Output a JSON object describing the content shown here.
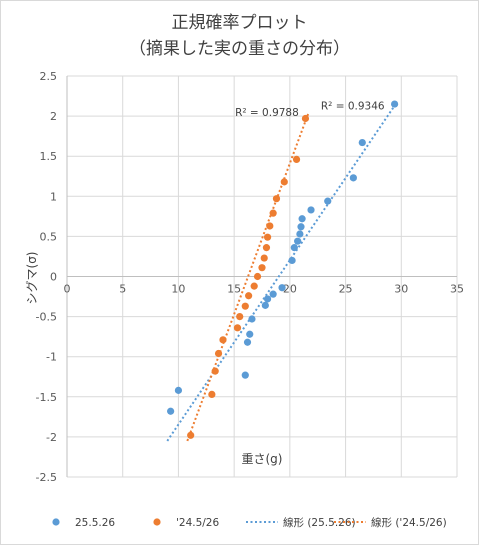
{
  "chart_data": {
    "type": "scatter",
    "title": "正規確率プロット",
    "subtitle": "（摘果した実の重さの分布）",
    "xlabel": "重さ(g)",
    "ylabel": "シグマ(σ)",
    "xlim": [
      0,
      35
    ],
    "ylim": [
      -2.5,
      2.5
    ],
    "x_ticks": [
      "0",
      "5",
      "10",
      "15",
      "20",
      "25",
      "30",
      "35"
    ],
    "y_ticks": [
      "2.5",
      "2",
      "1.5",
      "1",
      "0.5",
      "0",
      "-0.5",
      "-1",
      "-1.5",
      "-2",
      "-2.5"
    ],
    "grid": true,
    "legend_position": "bottom",
    "series": [
      {
        "name": "25.5.26",
        "color": "#5b9bd5",
        "points": [
          [
            9.3,
            -1.68
          ],
          [
            10.0,
            -1.42
          ],
          [
            16.0,
            -1.23
          ],
          [
            16.2,
            -0.82
          ],
          [
            16.4,
            -0.72
          ],
          [
            16.6,
            -0.53
          ],
          [
            17.8,
            -0.36
          ],
          [
            18.0,
            -0.28
          ],
          [
            18.5,
            -0.22
          ],
          [
            19.3,
            -0.14
          ],
          [
            20.2,
            0.2
          ],
          [
            20.4,
            0.36
          ],
          [
            20.7,
            0.44
          ],
          [
            20.9,
            0.53
          ],
          [
            21.0,
            0.62
          ],
          [
            21.1,
            0.72
          ],
          [
            21.9,
            0.83
          ],
          [
            23.4,
            0.94
          ],
          [
            25.7,
            1.23
          ],
          [
            26.5,
            1.67
          ],
          [
            29.4,
            2.15
          ]
        ]
      },
      {
        "name": "'24.5/26",
        "color": "#ed7d31",
        "points": [
          [
            11.1,
            -1.98
          ],
          [
            13.0,
            -1.47
          ],
          [
            13.3,
            -1.18
          ],
          [
            13.6,
            -0.96
          ],
          [
            14.0,
            -0.79
          ],
          [
            15.3,
            -0.64
          ],
          [
            15.5,
            -0.5
          ],
          [
            16.0,
            -0.37
          ],
          [
            16.3,
            -0.24
          ],
          [
            16.8,
            -0.12
          ],
          [
            17.1,
            0.0
          ],
          [
            17.5,
            0.11
          ],
          [
            17.7,
            0.23
          ],
          [
            17.9,
            0.36
          ],
          [
            18.0,
            0.49
          ],
          [
            18.2,
            0.63
          ],
          [
            18.5,
            0.79
          ],
          [
            18.8,
            0.97
          ],
          [
            19.5,
            1.18
          ],
          [
            20.6,
            1.46
          ],
          [
            21.4,
            1.97
          ]
        ]
      }
    ],
    "trendlines": [
      {
        "name": "線形 (25.5.26)",
        "color": "#5b9bd5",
        "x": [
          9.0,
          29.4
        ],
        "y": [
          -2.05,
          2.13
        ],
        "r2": "R² = 0.9346",
        "r2_at": [
          29.4,
          2.13
        ]
      },
      {
        "name": "線形 ('24.5/26)",
        "color": "#ed7d31",
        "x": [
          10.8,
          21.7
        ],
        "y": [
          -2.05,
          2.05
        ],
        "r2": "R² = 0.9788",
        "r2_at": [
          21.7,
          2.05
        ]
      }
    ]
  }
}
